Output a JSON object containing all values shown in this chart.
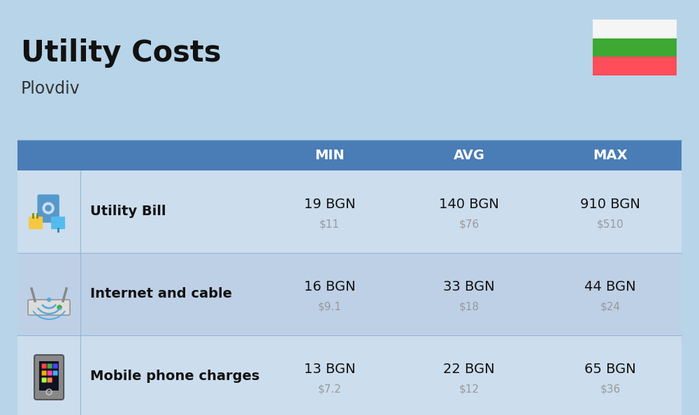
{
  "title": "Utility Costs",
  "subtitle": "Plovdiv",
  "background_color": "#b8d4e8",
  "header_bg_color": "#4a7db5",
  "header_text_color": "#ffffff",
  "row_colors": [
    "#ccdded",
    "#bed0e6"
  ],
  "icon_col_color_even": "#ccdded",
  "icon_col_color_odd": "#bed0e6",
  "columns": [
    "",
    "",
    "MIN",
    "AVG",
    "MAX"
  ],
  "rows": [
    {
      "label": "Utility Bill",
      "min_bgn": "19 BGN",
      "min_usd": "$11",
      "avg_bgn": "140 BGN",
      "avg_usd": "$76",
      "max_bgn": "910 BGN",
      "max_usd": "$510"
    },
    {
      "label": "Internet and cable",
      "min_bgn": "16 BGN",
      "min_usd": "$9.1",
      "avg_bgn": "33 BGN",
      "avg_usd": "$18",
      "max_bgn": "44 BGN",
      "max_usd": "$24"
    },
    {
      "label": "Mobile phone charges",
      "min_bgn": "13 BGN",
      "min_usd": "$7.2",
      "avg_bgn": "22 BGN",
      "avg_usd": "$12",
      "max_bgn": "65 BGN",
      "max_usd": "$36"
    }
  ],
  "flag_colors": [
    "#f5f5f5",
    "#3da832",
    "#ff4d5a"
  ],
  "label_fontsize": 14,
  "value_fontsize": 14,
  "usd_fontsize": 11,
  "header_fontsize": 14,
  "title_fontsize": 30,
  "subtitle_fontsize": 17
}
